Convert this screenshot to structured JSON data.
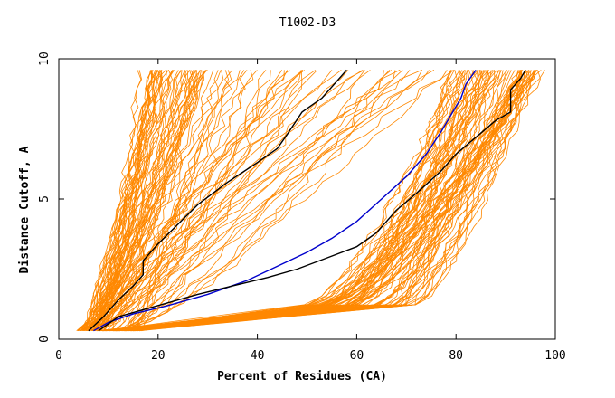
{
  "chart_data": {
    "type": "line",
    "title": "T1002-D3",
    "xlabel": "Percent of Residues (CA)",
    "ylabel": "Distance Cutoff, A",
    "xlim": [
      0,
      100
    ],
    "ylim": [
      0,
      10
    ],
    "xticks": [
      "0",
      "20",
      "40",
      "60",
      "80",
      "100"
    ],
    "yticks": [
      "0",
      "5",
      "10"
    ],
    "grid": false,
    "legend": "none",
    "colors": {
      "models": "#ff8800",
      "highlight_a": "#000000",
      "highlight_b": "#0000cc"
    },
    "highlighted_series": [
      {
        "color": "#000000",
        "x": [
          6,
          9,
          12,
          15,
          17,
          17,
          20,
          24,
          28,
          34,
          40,
          44,
          46,
          49,
          53,
          58
        ],
        "y": [
          0.3,
          0.8,
          1.4,
          1.9,
          2.3,
          2.8,
          3.4,
          4.1,
          4.8,
          5.6,
          6.3,
          6.8,
          7.3,
          8.1,
          8.6,
          9.6
        ]
      },
      {
        "color": "#0000cc",
        "x": [
          7,
          10,
          15,
          22,
          30,
          38,
          44,
          50,
          55,
          60,
          65,
          70,
          74,
          77,
          79,
          81,
          82,
          84
        ],
        "y": [
          0.3,
          0.6,
          0.9,
          1.2,
          1.6,
          2.1,
          2.6,
          3.1,
          3.6,
          4.2,
          5.0,
          5.8,
          6.6,
          7.4,
          8.0,
          8.6,
          9.1,
          9.6
        ]
      },
      {
        "color": "#000000",
        "x": [
          8,
          12,
          20,
          28,
          35,
          42,
          48,
          54,
          60,
          64,
          68,
          72,
          77,
          80,
          84,
          88,
          91,
          91,
          93,
          94
        ],
        "y": [
          0.3,
          0.8,
          1.2,
          1.6,
          1.9,
          2.2,
          2.5,
          2.9,
          3.3,
          3.8,
          4.6,
          5.2,
          6.0,
          6.6,
          7.2,
          7.8,
          8.1,
          8.9,
          9.3,
          9.6
        ]
      }
    ]
  }
}
